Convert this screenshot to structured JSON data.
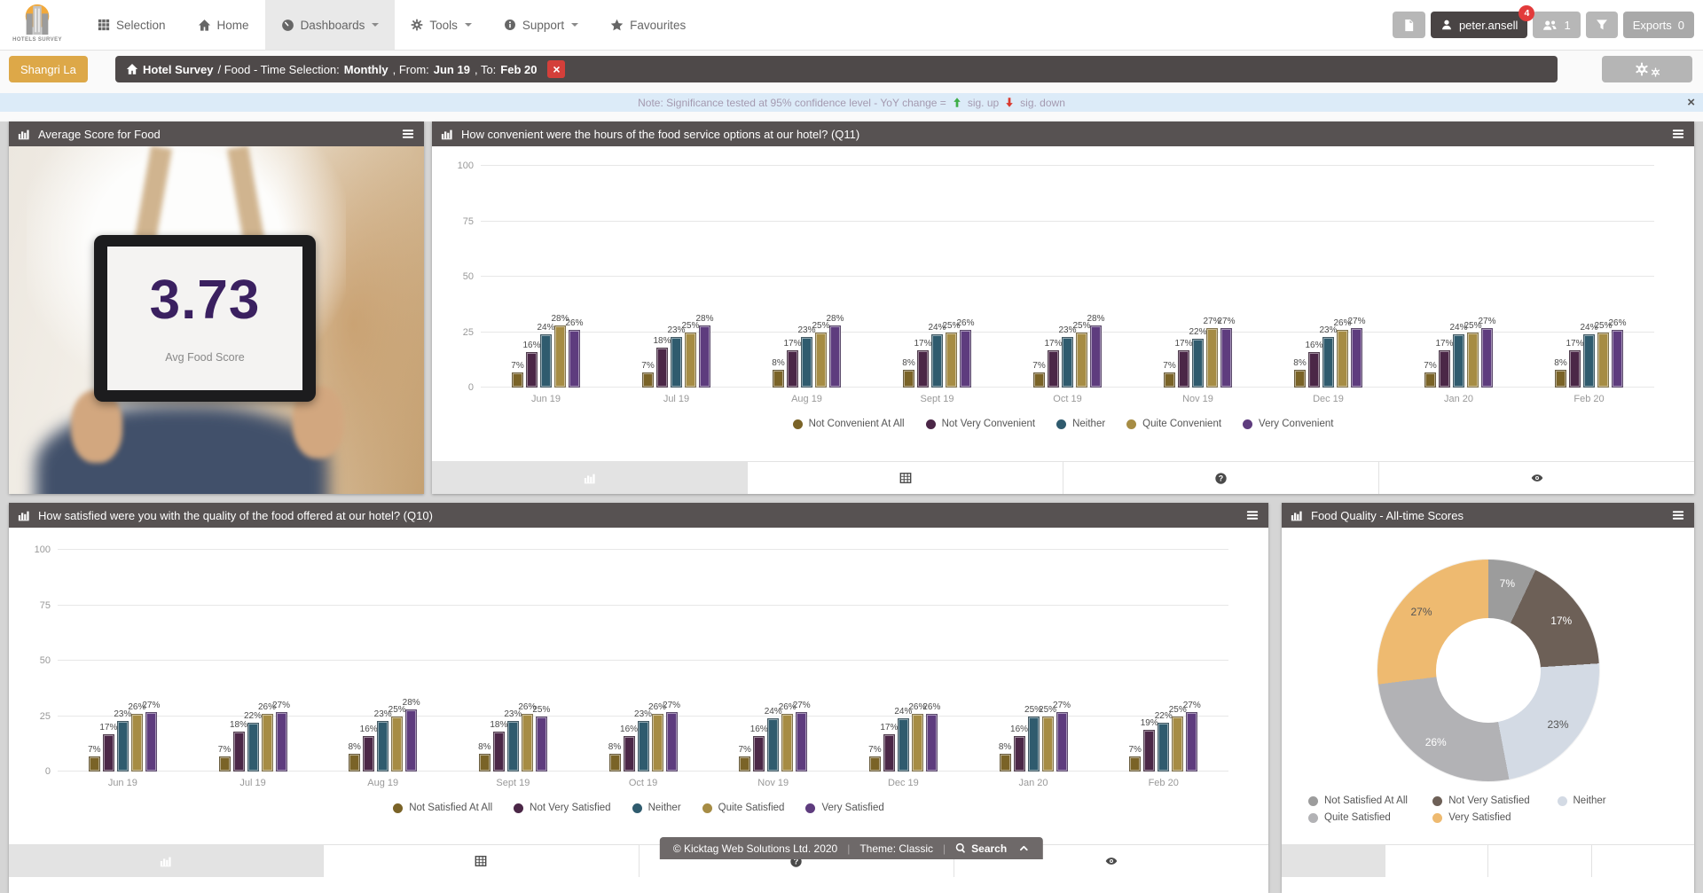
{
  "app": {
    "brand": "HOTELS SURVEY"
  },
  "colors": {
    "client_badge": "#dda848",
    "panel_header": "#575252",
    "note_bg": "#dcebf8",
    "note_text": "#a49ab0",
    "sig_up_green": "#3fae49",
    "sig_down_red": "#d93a2f",
    "score_text": "#3a2060",
    "footer_bg": "#6e6969",
    "user_button_bg": "#494444",
    "badge_red": "#e23b3b",
    "breadcrumb_bg": "#4e4949"
  },
  "icons": {
    "nav": [
      "grid-icon",
      "home-icon",
      "gauge-icon",
      "gear-icon",
      "info-icon",
      "star-icon"
    ],
    "nav_right": [
      "file-icon",
      "user-icon",
      "users-icon",
      "filter-icon"
    ],
    "panel": [
      "bar-chart-icon",
      "hamburger-icon"
    ],
    "tabs": [
      "bar-chart-icon",
      "table-icon",
      "question-icon",
      "eye-icon"
    ],
    "footer": [
      "search-icon",
      "chevron-up-icon"
    ],
    "note": [
      "arrow-up-icon",
      "arrow-down-icon",
      "close-icon"
    ]
  },
  "nav": {
    "items": [
      {
        "label": "Selection",
        "dropdown": false,
        "active": false
      },
      {
        "label": "Home",
        "dropdown": false,
        "active": false
      },
      {
        "label": "Dashboards",
        "dropdown": true,
        "active": true
      },
      {
        "label": "Tools",
        "dropdown": true,
        "active": false
      },
      {
        "label": "Support",
        "dropdown": true,
        "active": false
      },
      {
        "label": "Favourites",
        "dropdown": false,
        "active": false
      }
    ],
    "user_button": {
      "label": "peter.ansell",
      "badge": "4"
    },
    "group_button": {
      "count": "1"
    },
    "exports_button": {
      "label": "Exports",
      "count": "0"
    }
  },
  "filter_bar": {
    "client_badge": "Shangri La",
    "breadcrumb": {
      "root": "Hotel Survey",
      "mid": "/ Food - Time Selection:",
      "frequency": "Monthly",
      "from_label": ", From:",
      "from_value": "Jun 19",
      "to_label": ", To:",
      "to_value": "Feb 20"
    }
  },
  "note_bar": {
    "prefix": "Note: Significance tested at 95% confidence level - YoY change =",
    "sig_up": "sig. up",
    "sig_down": "sig. down"
  },
  "panels": {
    "avg_score": {
      "title": "Average Score for Food",
      "value": "3.73",
      "caption": "Avg Food Score"
    }
  },
  "footer": {
    "copyright": "© Kicktag Web Solutions Ltd. 2020",
    "theme": "Theme: Classic",
    "search": "Search"
  },
  "chart_data": [
    {
      "id": "q11",
      "type": "bar",
      "title": "How convenient were the hours of the food service options at our hotel? (Q11)",
      "unit": "%",
      "ylim": [
        0,
        100
      ],
      "yticks": [
        0,
        25,
        50,
        75,
        100
      ],
      "grid": true,
      "legend_position": "bottom",
      "categories": [
        "Jun 19",
        "Jul 19",
        "Aug 19",
        "Sept 19",
        "Oct 19",
        "Nov 19",
        "Dec 19",
        "Jan 20",
        "Feb 20"
      ],
      "series": [
        {
          "name": "Not Convenient At All",
          "color": "#7a6327",
          "values": [
            7,
            7,
            8,
            8,
            7,
            7,
            8,
            7,
            8
          ]
        },
        {
          "name": "Not Very Convenient",
          "color": "#4b2747",
          "values": [
            16,
            18,
            17,
            17,
            17,
            17,
            16,
            17,
            17
          ]
        },
        {
          "name": "Neither",
          "color": "#2f5b6e",
          "values": [
            24,
            23,
            23,
            24,
            23,
            22,
            23,
            24,
            24
          ]
        },
        {
          "name": "Quite Convenient",
          "color": "#a68c44",
          "values": [
            28,
            25,
            25,
            25,
            25,
            27,
            26,
            25,
            25
          ]
        },
        {
          "name": "Very Convenient",
          "color": "#5e3c7e",
          "values": [
            26,
            28,
            28,
            26,
            28,
            27,
            27,
            27,
            26
          ]
        }
      ]
    },
    {
      "id": "q10",
      "type": "bar",
      "title": "How satisfied were you with the quality of the food offered at our hotel? (Q10)",
      "unit": "%",
      "ylim": [
        0,
        100
      ],
      "yticks": [
        0,
        25,
        50,
        75,
        100
      ],
      "grid": true,
      "legend_position": "bottom",
      "categories": [
        "Jun 19",
        "Jul 19",
        "Aug 19",
        "Sept 19",
        "Oct 19",
        "Nov 19",
        "Dec 19",
        "Jan 20",
        "Feb 20"
      ],
      "series": [
        {
          "name": "Not Satisfied At All",
          "color": "#7a6327",
          "values": [
            7,
            7,
            8,
            8,
            8,
            7,
            7,
            8,
            7
          ]
        },
        {
          "name": "Not Very Satisfied",
          "color": "#4b2747",
          "values": [
            17,
            18,
            16,
            18,
            16,
            16,
            17,
            16,
            19
          ]
        },
        {
          "name": "Neither",
          "color": "#2f5b6e",
          "values": [
            23,
            22,
            23,
            23,
            23,
            24,
            24,
            25,
            22
          ]
        },
        {
          "name": "Quite Satisfied",
          "color": "#a68c44",
          "values": [
            26,
            26,
            25,
            26,
            26,
            26,
            26,
            25,
            25
          ]
        },
        {
          "name": "Very Satisfied",
          "color": "#5e3c7e",
          "values": [
            27,
            27,
            28,
            25,
            27,
            27,
            26,
            27,
            27
          ]
        }
      ]
    },
    {
      "id": "food-quality",
      "type": "pie",
      "title": "Food Quality - All-time Scores",
      "unit": "%",
      "donut": true,
      "legend_position": "bottom",
      "slices": [
        {
          "label": "Not Satisfied At All",
          "value": 7,
          "color": "#9c9c9c",
          "label_color": "#ffffff"
        },
        {
          "label": "Not Very Satisfied",
          "value": 17,
          "color": "#6d6057",
          "label_color": "#ffffff"
        },
        {
          "label": "Neither",
          "value": 23,
          "color": "#d3dae4",
          "label_color": "#555555"
        },
        {
          "label": "Quite Satisfied",
          "value": 26,
          "color": "#b2b2b5",
          "label_color": "#ffffff"
        },
        {
          "label": "Very Satisfied",
          "value": 27,
          "color": "#eeba70",
          "label_color": "#555555"
        }
      ]
    }
  ]
}
